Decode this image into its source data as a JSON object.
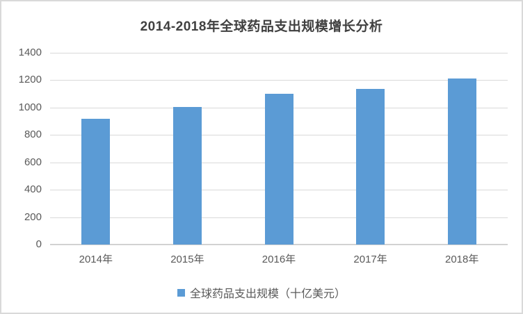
{
  "title": "2014-2018年全球药品支出规模增长分析",
  "legend": {
    "label": "全球药品支出规模（十亿美元）"
  },
  "colors": {
    "bar": "#5b9bd5",
    "gridline": "#d9d9d9",
    "axis_line": "#d2d2d2",
    "title_text": "#404040",
    "tick_text": "#595959",
    "panel_border": "#d9d9d9",
    "background": "#ffffff"
  },
  "chart_data": {
    "type": "bar",
    "title": "2014-2018年全球药品支出规模增长分析",
    "categories": [
      "2014年",
      "2015年",
      "2016年",
      "2017年",
      "2018年"
    ],
    "series": [
      {
        "name": "全球药品支出规模（十亿美元）",
        "values": [
          920,
          1005,
          1100,
          1135,
          1210
        ]
      }
    ],
    "xlabel": "",
    "ylabel": "",
    "ylim": [
      0,
      1400
    ],
    "yticks": [
      0,
      200,
      400,
      600,
      800,
      1000,
      1200,
      1400
    ],
    "grid": true,
    "legend_position": "bottom"
  }
}
